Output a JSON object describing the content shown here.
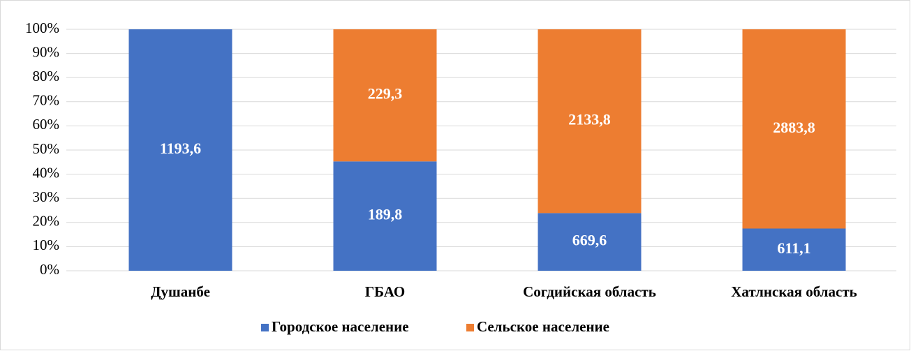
{
  "chart_data": {
    "type": "stacked_bar_100",
    "categories": [
      "Душанбе",
      "ГБАО",
      "Согдийская область",
      "Хатлнская область"
    ],
    "series": [
      {
        "name": "Городское население",
        "color": "#4472c4",
        "values": [
          1193.6,
          189.8,
          669.6,
          611.1
        ],
        "value_labels": [
          "1193,6",
          "189,8",
          "669,6",
          "611,1"
        ]
      },
      {
        "name": "Сельское население",
        "color": "#ed7d31",
        "values": [
          0,
          229.3,
          2133.8,
          2883.8
        ],
        "value_labels": [
          null,
          "229,3",
          "2133,8",
          "2883,8"
        ]
      }
    ],
    "ylim": [
      0,
      100
    ],
    "yticks": [
      {
        "value": 0,
        "label": "0%"
      },
      {
        "value": 10,
        "label": "10%"
      },
      {
        "value": 20,
        "label": "20%"
      },
      {
        "value": 30,
        "label": "30%"
      },
      {
        "value": 40,
        "label": "40%"
      },
      {
        "value": 50,
        "label": "50%"
      },
      {
        "value": 60,
        "label": "60%"
      },
      {
        "value": 70,
        "label": "70%"
      },
      {
        "value": 80,
        "label": "80%"
      },
      {
        "value": 90,
        "label": "90%"
      },
      {
        "value": 100,
        "label": "100%"
      }
    ],
    "grid": true,
    "legend": "bottom"
  }
}
